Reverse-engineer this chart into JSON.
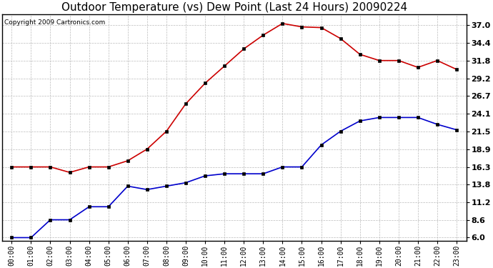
{
  "title": "Outdoor Temperature (vs) Dew Point (Last 24 Hours) 20090224",
  "copyright": "Copyright 2009 Cartronics.com",
  "hours": [
    "00:00",
    "01:00",
    "02:00",
    "03:00",
    "04:00",
    "05:00",
    "06:00",
    "07:00",
    "08:00",
    "09:00",
    "10:00",
    "11:00",
    "12:00",
    "13:00",
    "14:00",
    "15:00",
    "16:00",
    "17:00",
    "18:00",
    "19:00",
    "20:00",
    "21:00",
    "22:00",
    "23:00"
  ],
  "temp": [
    16.3,
    16.3,
    16.3,
    15.5,
    16.3,
    16.3,
    17.2,
    18.9,
    21.5,
    25.5,
    28.5,
    31.0,
    33.5,
    35.5,
    37.2,
    36.7,
    36.6,
    35.0,
    32.7,
    31.8,
    31.8,
    30.8,
    31.8,
    30.5
  ],
  "dewpoint": [
    6.0,
    6.0,
    8.6,
    8.6,
    10.5,
    10.5,
    13.5,
    13.0,
    13.5,
    14.0,
    15.0,
    15.3,
    15.3,
    15.3,
    16.3,
    16.3,
    19.5,
    21.5,
    23.0,
    23.5,
    23.5,
    23.5,
    22.5,
    21.7
  ],
  "temp_color": "#cc0000",
  "dew_color": "#0000cc",
  "bg_color": "#ffffff",
  "plot_bg": "#ffffff",
  "grid_color": "#bbbbbb",
  "ytick_labels": [
    "37.0",
    "34.4",
    "31.8",
    "29.2",
    "26.7",
    "24.1",
    "21.5",
    "18.9",
    "16.3",
    "13.8",
    "11.2",
    "8.6",
    "6.0"
  ],
  "ytick_vals": [
    37.0,
    34.4,
    31.8,
    29.2,
    26.7,
    24.1,
    21.5,
    18.9,
    16.3,
    13.8,
    11.2,
    8.6,
    6.0
  ],
  "ylim": [
    5.5,
    38.5
  ],
  "title_fontsize": 11,
  "copyright_fontsize": 6.5,
  "xtick_fontsize": 7,
  "ytick_fontsize": 8,
  "marker": "s",
  "markersize": 3,
  "linewidth": 1.2
}
